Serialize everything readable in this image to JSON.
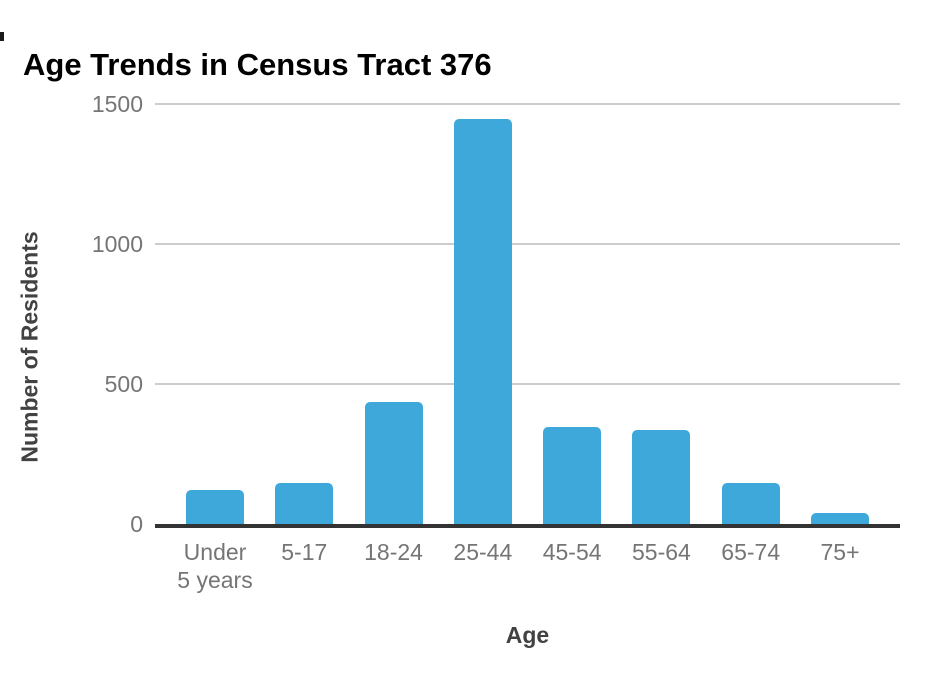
{
  "page": {
    "background": "#ffffff"
  },
  "chart_data": {
    "type": "bar",
    "title": "Age Trends in Census Tract 376",
    "xlabel": "Age",
    "ylabel": "Number of Residents",
    "categories": [
      "Under\n5 years",
      "5-17",
      "18-24",
      "25-44",
      "45-54",
      "55-64",
      "65-74",
      "75+"
    ],
    "values": [
      120,
      145,
      435,
      1445,
      345,
      335,
      145,
      40
    ],
    "ylim": [
      0,
      1500
    ],
    "yticks": [
      0,
      500,
      1000,
      1500
    ],
    "grid": true,
    "legend": "none",
    "bar_color": "#3EA8DB",
    "gridline_color": "#cccccc",
    "axis_line_color": "#333333",
    "tick_label_color": "#757575",
    "axis_title_color": "#424242",
    "title_color": "#000000"
  }
}
